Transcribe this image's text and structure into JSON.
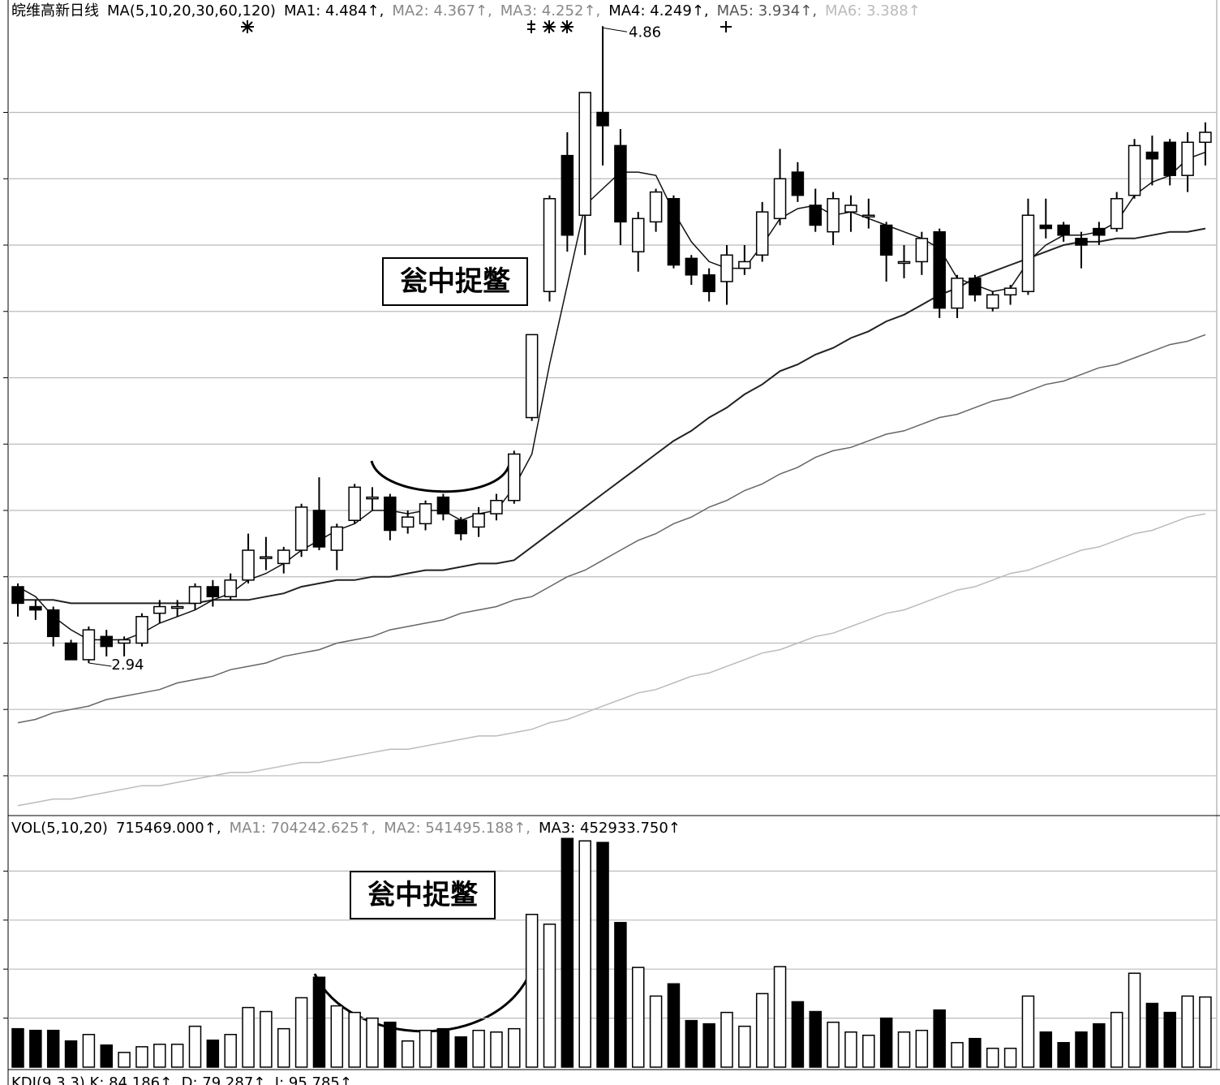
{
  "chart_data": [
    {
      "type": "candlestick",
      "header": [
        {
          "text": "皖维高新日线",
          "color": "#000000"
        },
        {
          "text": "MA(5,10,20,30,60,120)",
          "color": "#000000"
        },
        {
          "text": "MA1: 4.484↑,",
          "color": "#000000"
        },
        {
          "text": "MA2: 4.367↑,",
          "color": "#888888"
        },
        {
          "text": "MA3: 4.252↑,",
          "color": "#888888"
        },
        {
          "text": "MA4: 4.249↑,",
          "color": "#000000"
        },
        {
          "text": "MA5: 3.934↑,",
          "color": "#555555"
        },
        {
          "text": "MA6: 3.388↑",
          "color": "#bbbbbb"
        }
      ],
      "open": [
        3.17,
        3.11,
        3.1,
        3.0,
        2.95,
        3.02,
        3.0,
        3.0,
        3.09,
        3.11,
        3.12,
        3.17,
        3.14,
        3.19,
        3.26,
        3.24,
        3.28,
        3.4,
        3.28,
        3.37,
        3.44,
        3.44,
        3.35,
        3.36,
        3.44,
        3.37,
        3.35,
        3.39,
        3.43,
        3.68,
        4.06,
        4.47,
        4.29,
        4.6,
        4.5,
        4.18,
        4.27,
        4.34,
        4.16,
        4.11,
        4.09,
        4.13,
        4.17,
        4.28,
        4.42,
        4.32,
        4.24,
        4.3,
        4.29,
        4.26,
        4.15,
        4.15,
        4.24,
        4.01,
        4.1,
        4.01,
        4.05,
        4.06,
        4.26,
        4.26,
        4.22,
        4.25,
        4.25,
        4.35,
        4.48,
        4.51,
        4.41,
        4.51
      ],
      "high": [
        3.18,
        3.13,
        3.11,
        3.01,
        3.05,
        3.04,
        3.02,
        3.09,
        3.13,
        3.13,
        3.18,
        3.19,
        3.21,
        3.33,
        3.32,
        3.29,
        3.42,
        3.5,
        3.36,
        3.48,
        3.47,
        3.45,
        3.4,
        3.43,
        3.45,
        3.38,
        3.41,
        3.45,
        3.58,
        3.93,
        4.35,
        4.54,
        4.66,
        4.86,
        4.55,
        4.3,
        4.37,
        4.35,
        4.17,
        4.13,
        4.2,
        4.2,
        4.33,
        4.49,
        4.45,
        4.37,
        4.36,
        4.35,
        4.34,
        4.27,
        4.2,
        4.24,
        4.25,
        4.11,
        4.11,
        4.06,
        4.08,
        4.34,
        4.34,
        4.27,
        4.24,
        4.27,
        4.36,
        4.52,
        4.53,
        4.52,
        4.54,
        4.57
      ],
      "low": [
        3.08,
        3.07,
        2.99,
        2.95,
        2.94,
        2.96,
        2.96,
        2.99,
        3.06,
        3.08,
        3.1,
        3.11,
        3.13,
        3.18,
        3.22,
        3.21,
        3.26,
        3.28,
        3.22,
        3.36,
        3.4,
        3.31,
        3.33,
        3.34,
        3.37,
        3.31,
        3.32,
        3.37,
        3.42,
        3.67,
        4.03,
        4.18,
        4.17,
        4.44,
        4.2,
        4.12,
        4.24,
        4.13,
        4.08,
        4.03,
        4.02,
        4.11,
        4.15,
        4.26,
        4.33,
        4.24,
        4.2,
        4.24,
        4.25,
        4.09,
        4.1,
        4.11,
        3.98,
        3.98,
        4.03,
        4.0,
        4.02,
        4.05,
        4.22,
        4.21,
        4.13,
        4.2,
        4.24,
        4.34,
        4.38,
        4.38,
        4.36,
        4.44
      ],
      "close": [
        3.12,
        3.1,
        3.02,
        2.95,
        3.04,
        2.99,
        3.01,
        3.08,
        3.11,
        3.11,
        3.17,
        3.14,
        3.19,
        3.28,
        3.26,
        3.28,
        3.41,
        3.29,
        3.35,
        3.47,
        3.44,
        3.34,
        3.38,
        3.42,
        3.39,
        3.33,
        3.39,
        3.43,
        3.57,
        3.93,
        4.34,
        4.23,
        4.66,
        4.56,
        4.27,
        4.28,
        4.36,
        4.14,
        4.11,
        4.06,
        4.17,
        4.15,
        4.3,
        4.4,
        4.35,
        4.26,
        4.34,
        4.32,
        4.29,
        4.17,
        4.15,
        4.22,
        4.01,
        4.1,
        4.05,
        4.05,
        4.07,
        4.29,
        4.25,
        4.23,
        4.2,
        4.23,
        4.34,
        4.5,
        4.46,
        4.41,
        4.51,
        4.54
      ],
      "up_color": "#ffffff",
      "down_color": "#000000",
      "series": [
        {
          "color": "#111111",
          "values": [
            3.17,
            3.14,
            3.08,
            3.04,
            3.01,
            3.01,
            3.01,
            3.03,
            3.06,
            3.08,
            3.1,
            3.13,
            3.15,
            3.19,
            3.21,
            3.24,
            3.28,
            3.31,
            3.34,
            3.36,
            3.4,
            3.4,
            3.39,
            3.4,
            3.4,
            3.37,
            3.39,
            3.4,
            3.47,
            3.57,
            3.84,
            4.08,
            4.32,
            4.37,
            4.42,
            4.42,
            4.41,
            4.3,
            4.21,
            4.15,
            4.13,
            4.13,
            4.2,
            4.28,
            4.31,
            4.32,
            4.29,
            4.3,
            4.28,
            4.26,
            4.24,
            4.22,
            4.19,
            4.1,
            4.08,
            4.06,
            4.07,
            4.15,
            4.2,
            4.23,
            4.23,
            4.24,
            4.27,
            4.35,
            4.39,
            4.41,
            4.46,
            4.48
          ]
        },
        {
          "color": "#222222",
          "values": [
            3.13,
            3.13,
            3.13,
            3.12,
            3.12,
            3.12,
            3.12,
            3.12,
            3.12,
            3.12,
            3.12,
            3.13,
            3.13,
            3.13,
            3.14,
            3.15,
            3.17,
            3.18,
            3.19,
            3.19,
            3.2,
            3.2,
            3.21,
            3.22,
            3.22,
            3.23,
            3.24,
            3.24,
            3.25,
            3.29,
            3.33,
            3.37,
            3.41,
            3.45,
            3.49,
            3.53,
            3.57,
            3.61,
            3.64,
            3.68,
            3.71,
            3.75,
            3.78,
            3.82,
            3.84,
            3.87,
            3.89,
            3.92,
            3.94,
            3.97,
            3.99,
            4.02,
            4.05,
            4.07,
            4.1,
            4.12,
            4.14,
            4.16,
            4.18,
            4.2,
            4.21,
            4.21,
            4.22,
            4.22,
            4.23,
            4.24,
            4.24,
            4.25
          ]
        },
        {
          "color": "#666666",
          "values": [
            2.76,
            2.77,
            2.79,
            2.8,
            2.81,
            2.83,
            2.84,
            2.85,
            2.86,
            2.88,
            2.89,
            2.9,
            2.92,
            2.93,
            2.94,
            2.96,
            2.97,
            2.98,
            3.0,
            3.01,
            3.02,
            3.04,
            3.05,
            3.06,
            3.07,
            3.09,
            3.1,
            3.11,
            3.13,
            3.14,
            3.17,
            3.2,
            3.22,
            3.25,
            3.28,
            3.31,
            3.33,
            3.36,
            3.38,
            3.41,
            3.43,
            3.46,
            3.48,
            3.51,
            3.53,
            3.56,
            3.58,
            3.59,
            3.61,
            3.63,
            3.64,
            3.66,
            3.68,
            3.69,
            3.71,
            3.73,
            3.74,
            3.76,
            3.78,
            3.79,
            3.81,
            3.83,
            3.84,
            3.86,
            3.88,
            3.9,
            3.91,
            3.93
          ]
        },
        {
          "color": "#bbbbbb",
          "values": [
            2.51,
            2.52,
            2.53,
            2.53,
            2.54,
            2.55,
            2.56,
            2.57,
            2.57,
            2.58,
            2.59,
            2.6,
            2.61,
            2.61,
            2.62,
            2.63,
            2.64,
            2.64,
            2.65,
            2.66,
            2.67,
            2.68,
            2.68,
            2.69,
            2.7,
            2.71,
            2.72,
            2.72,
            2.73,
            2.74,
            2.76,
            2.77,
            2.79,
            2.81,
            2.83,
            2.85,
            2.86,
            2.88,
            2.9,
            2.91,
            2.93,
            2.95,
            2.97,
            2.98,
            3.0,
            3.02,
            3.03,
            3.05,
            3.07,
            3.09,
            3.1,
            3.12,
            3.14,
            3.16,
            3.17,
            3.19,
            3.21,
            3.22,
            3.24,
            3.26,
            3.28,
            3.29,
            3.31,
            3.33,
            3.34,
            3.36,
            3.38,
            3.39
          ]
        }
      ],
      "high_label": {
        "value": 4.86
      },
      "low_label": {
        "value": 2.94
      },
      "annotation": "瓮中捉鳖",
      "ylim": [
        2.48,
        4.89
      ],
      "yticks": [
        2.6,
        2.8,
        3.0,
        3.2,
        3.4,
        3.6,
        3.8,
        4.0,
        4.2,
        4.4,
        4.6
      ],
      "show_tick_labels": false,
      "grid": true
    },
    {
      "type": "bar",
      "header": [
        {
          "text": "VOL(5,10,20)",
          "color": "#000000"
        },
        {
          "text": "715469.000↑,",
          "color": "#000000"
        },
        {
          "text": "MA1: 704242.625↑,",
          "color": "#888888"
        },
        {
          "text": "MA2: 541495.188↑,",
          "color": "#888888"
        },
        {
          "text": "MA3: 452933.750↑",
          "color": "#000000"
        }
      ],
      "values": [
        392000,
        375000,
        375000,
        267000,
        333000,
        225000,
        150000,
        208000,
        233000,
        233000,
        417000,
        275000,
        333000,
        608000,
        567000,
        392000,
        708000,
        917000,
        625000,
        558000,
        500000,
        458000,
        267000,
        375000,
        392000,
        308000,
        375000,
        358000,
        392000,
        1558000,
        1458000,
        2333000,
        2308000,
        2292000,
        1475000,
        1017000,
        725000,
        850000,
        475000,
        442000,
        558000,
        417000,
        750000,
        1025000,
        667000,
        567000,
        458000,
        358000,
        325000,
        500000,
        358000,
        375000,
        583000,
        250000,
        292000,
        192000,
        192000,
        725000,
        358000,
        250000,
        358000,
        442000,
        558000,
        958000,
        650000,
        558000,
        725000,
        715469
      ],
      "annotation": "瓮中捉鳖",
      "ylim": [
        0,
        2500000
      ],
      "yticks": [
        500000,
        1000000,
        1500000,
        2000000
      ],
      "show_tick_labels": false,
      "grid": true
    }
  ],
  "footer": "KDJ(9,3,3) K: 84.186↑, D: 79.287↑, J: 95.785↑"
}
